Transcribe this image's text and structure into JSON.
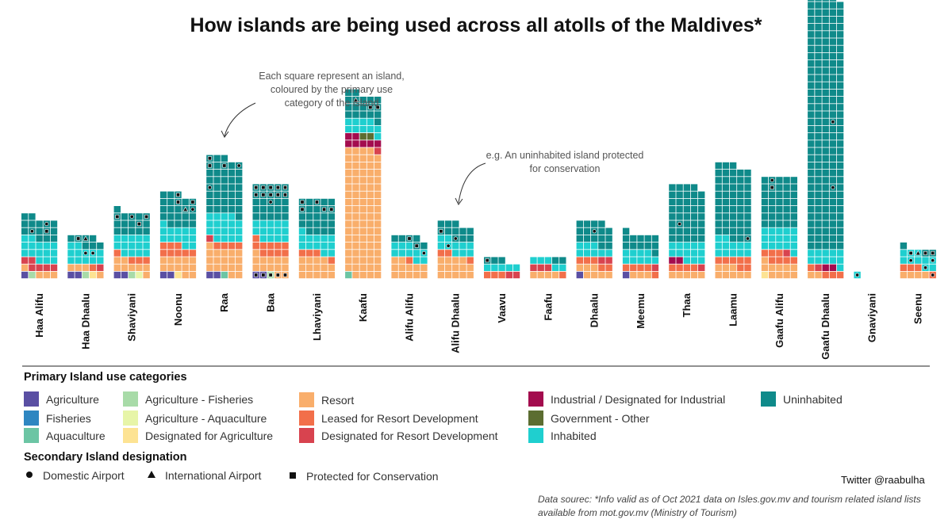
{
  "title": "How islands are being used across all atolls of the Maldives*",
  "annotations": {
    "square_note": "Each square represent an island, coloured by the primary use category of the island",
    "example_note": "e.g. An uninhabited island protected for conservation"
  },
  "legend": {
    "categories_title": "Primary Island use categories",
    "secondary_title": "Secondary Island designation",
    "categories": [
      {
        "label": "Agriculture",
        "color": "#5a4fa3"
      },
      {
        "label": "Fisheries",
        "color": "#2e86c1"
      },
      {
        "label": "Aquaculture",
        "color": "#6cc5a4"
      },
      {
        "label": "Agriculture  - Fisheries",
        "color": "#a8dba8"
      },
      {
        "label": "Agriculture - Aquaculture",
        "color": "#e7f5a8"
      },
      {
        "label": "Designated for Agriculture",
        "color": "#fde393"
      },
      {
        "label": "Resort",
        "color": "#f9ae6b"
      },
      {
        "label": "Leased for Resort Development",
        "color": "#f26f4a"
      },
      {
        "label": "Designated for Resort Development",
        "color": "#d8434f"
      },
      {
        "label": "Industrial / Designated for Industrial",
        "color": "#a30c4e"
      },
      {
        "label": "Government - Other",
        "color": "#5c6d31"
      },
      {
        "label": "Inhabited",
        "color": "#1fcfcf"
      },
      {
        "label": "Uninhabited",
        "color": "#0f8a8a"
      }
    ],
    "secondary": [
      {
        "label": "Domestic Airport",
        "symbol": "dot"
      },
      {
        "label": "International Airport",
        "symbol": "triangle"
      },
      {
        "label": "Protected for Conservation",
        "symbol": "square"
      }
    ]
  },
  "credit": "Twitter @raabulha",
  "source": "Data sourec: *Info valid as of Oct 2021 data on Isles.gov.mv and tourism related island lists available from mot.gov.mv (Ministry of Tourism)",
  "chart_data": {
    "type": "waffle",
    "unit": "island",
    "categories": [
      "Haa Alifu",
      "Haa Dhaalu",
      "Shaviyani",
      "Noonu",
      "Raa",
      "Baa",
      "Lhaviyani",
      "Kaafu",
      "Alifu Alifu",
      "Alifu Dhaalu",
      "Vaavu",
      "Faafu",
      "Dhaalu",
      "Meemu",
      "Thaa",
      "Laamu",
      "Gaafu Alifu",
      "Gaafu Dhaalu",
      "Gnaviyani",
      "Seenu"
    ],
    "series": [
      {
        "name": "Agriculture",
        "values": [
          1,
          2,
          2,
          2,
          2,
          2,
          0,
          0,
          0,
          0,
          0,
          0,
          1,
          1,
          0,
          0,
          0,
          0,
          0,
          0
        ]
      },
      {
        "name": "Fisheries",
        "values": [
          0,
          0,
          0,
          0,
          0,
          0,
          0,
          0,
          0,
          0,
          0,
          0,
          0,
          0,
          0,
          0,
          0,
          0,
          0,
          0
        ]
      },
      {
        "name": "Aquaculture",
        "values": [
          0,
          0,
          0,
          0,
          1,
          0,
          0,
          1,
          0,
          0,
          0,
          0,
          0,
          0,
          0,
          0,
          0,
          0,
          0,
          0
        ]
      },
      {
        "name": "Agriculture  - Fisheries",
        "values": [
          1,
          1,
          1,
          0,
          0,
          1,
          0,
          0,
          0,
          0,
          0,
          0,
          0,
          0,
          0,
          0,
          0,
          0,
          0,
          0
        ]
      },
      {
        "name": "Agriculture - Aquaculture",
        "values": [
          0,
          0,
          1,
          0,
          0,
          0,
          0,
          0,
          0,
          0,
          0,
          0,
          0,
          0,
          0,
          0,
          0,
          0,
          0,
          0
        ]
      },
      {
        "name": "Designated for Agriculture",
        "values": [
          0,
          1,
          0,
          1,
          0,
          0,
          0,
          0,
          0,
          0,
          0,
          0,
          0,
          0,
          0,
          0,
          1,
          0,
          0,
          0
        ]
      },
      {
        "name": "Resort",
        "values": [
          4,
          4,
          8,
          12,
          18,
          13,
          14,
          88,
          12,
          14,
          0,
          4,
          7,
          3,
          5,
          8,
          10,
          2,
          0,
          4
        ]
      },
      {
        "name": "Leased for Resort Development",
        "values": [
          0,
          1,
          4,
          8,
          4,
          10,
          4,
          0,
          1,
          3,
          3,
          1,
          5,
          5,
          4,
          7,
          7,
          4,
          0,
          4
        ]
      },
      {
        "name": "Designated for Resort Development",
        "values": [
          6,
          1,
          0,
          0,
          1,
          0,
          0,
          1,
          0,
          0,
          2,
          3,
          2,
          1,
          1,
          0,
          1,
          1,
          0,
          0
        ]
      },
      {
        "name": "Industrial / Designated for Industrial",
        "values": [
          0,
          0,
          0,
          0,
          0,
          0,
          0,
          7,
          0,
          0,
          0,
          0,
          0,
          0,
          2,
          0,
          0,
          2,
          0,
          0
        ]
      },
      {
        "name": "Government - Other",
        "values": [
          0,
          0,
          0,
          0,
          0,
          0,
          0,
          2,
          0,
          0,
          0,
          0,
          0,
          0,
          0,
          0,
          0,
          0,
          0,
          0
        ]
      },
      {
        "name": "Inhabited",
        "values": [
          15,
          12,
          14,
          13,
          18,
          14,
          13,
          10,
          10,
          10,
          5,
          5,
          8,
          9,
          13,
          12,
          16,
          11,
          1,
          10
        ]
      },
      {
        "name": "Uninhabited",
        "values": [
          15,
          7,
          16,
          22,
          39,
          25,
          24,
          18,
          6,
          11,
          3,
          2,
          16,
          12,
          39,
          51,
          35,
          174,
          0,
          3
        ]
      }
    ],
    "secondary_markers": {
      "domestic_airport": {
        "Haa Alifu": 2,
        "Haa Dhaalu": 2,
        "Shaviyani": 1,
        "Noonu": 1,
        "Raa": 2,
        "Baa": 1,
        "Lhaviyani": 0,
        "Kaafu": 0,
        "Alifu Alifu": 1,
        "Alifu Dhaalu": 2,
        "Vaavu": 0,
        "Faafu": 0,
        "Dhaalu": 1,
        "Meemu": 0,
        "Thaa": 1,
        "Laamu": 1,
        "Gaafu Alifu": 1,
        "Gaafu Dhaalu": 2,
        "Gnaviyani": 1,
        "Seenu": 4
      },
      "international_airport": {
        "Haa Dhaalu": 1,
        "Noonu": 1,
        "Kaafu": 1,
        "Seenu": 1
      },
      "protected_for_conservation": {
        "Haa Alifu": 1,
        "Haa Dhaalu": 1,
        "Shaviyani": 3,
        "Noonu": 3,
        "Raa": 3,
        "Baa": 15,
        "Lhaviyani": 5,
        "Kaafu": 2,
        "Alifu Alifu": 2,
        "Alifu Dhaalu": 1,
        "Vaavu": 1,
        "Faafu": 0,
        "Dhaalu": 0,
        "Meemu": 0,
        "Thaa": 0,
        "Laamu": 0,
        "Gaafu Alifu": 1,
        "Gaafu Dhaalu": 0,
        "Gnaviyani": 0,
        "Seenu": 3
      }
    }
  }
}
